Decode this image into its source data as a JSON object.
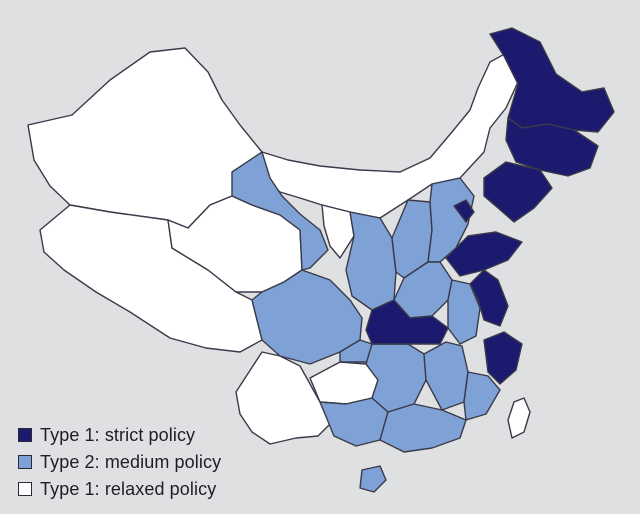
{
  "colors": {
    "background": "#dfe0e2",
    "strict": "#1c1a6e",
    "medium": "#7fa2d6",
    "relaxed": "#ffffff",
    "border": "#3a3a4a"
  },
  "legend": {
    "items": [
      {
        "label": "Type 1: strict policy",
        "category": "strict",
        "icon": "dark-blue-square-swatch"
      },
      {
        "label": "Type 2: medium policy",
        "category": "medium",
        "icon": "light-blue-square-swatch"
      },
      {
        "label": "Type 1: relaxed policy",
        "category": "relaxed",
        "icon": "white-square-swatch"
      }
    ]
  }
}
